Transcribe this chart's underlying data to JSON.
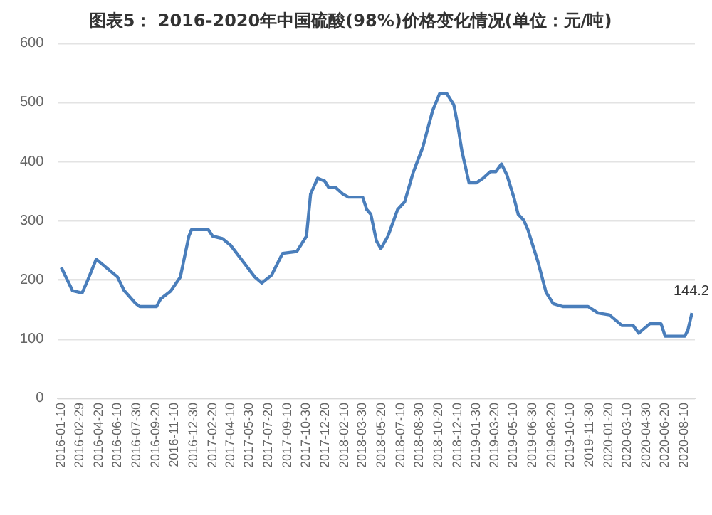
{
  "chart_data": {
    "type": "line",
    "title": "图表5： 2016-2020年中国硫酸(98%)价格变化情况(单位：元/吨)",
    "x": [
      "2016-01-10",
      "2016-02-09",
      "2016-03-06",
      "2016-03-18",
      "2016-04-13",
      "2016-06-09",
      "2016-06-27",
      "2016-07-28",
      "2016-08-08",
      "2016-09-22",
      "2016-10-03",
      "2016-10-30",
      "2016-11-25",
      "2016-12-18",
      "2016-12-25",
      "2017-02-08",
      "2017-02-20",
      "2017-03-18",
      "2017-04-10",
      "2017-06-13",
      "2017-07-02",
      "2017-07-28",
      "2017-08-27",
      "2017-10-04",
      "2017-10-30",
      "2017-11-10",
      "2017-11-29",
      "2017-12-18",
      "2017-12-29",
      "2018-01-17",
      "2018-02-05",
      "2018-02-20",
      "2018-03-30",
      "2018-04-10",
      "2018-04-21",
      "2018-05-06",
      "2018-05-18",
      "2018-06-06",
      "2018-07-02",
      "2018-07-21",
      "2018-08-12",
      "2018-09-08",
      "2018-09-19",
      "2018-10-04",
      "2018-10-23",
      "2018-11-11",
      "2018-11-30",
      "2018-12-11",
      "2018-12-22",
      "2019-01-10",
      "2019-01-29",
      "2019-02-17",
      "2019-03-08",
      "2019-03-23",
      "2019-04-07",
      "2019-04-22",
      "2019-05-11",
      "2019-05-22",
      "2019-06-06",
      "2019-06-17",
      "2019-07-14",
      "2019-08-05",
      "2019-08-24",
      "2019-09-19",
      "2019-11-26",
      "2019-12-23",
      "2020-01-22",
      "2020-02-25",
      "2020-03-26",
      "2020-04-10",
      "2020-05-10",
      "2020-06-09",
      "2020-06-20",
      "2020-08-12",
      "2020-08-20",
      "2020-08-31"
    ],
    "series": [
      {
        "color": "#4a7ebb",
        "values": [
          221,
          182,
          178,
          195,
          235,
          205,
          182,
          160,
          155,
          155,
          168,
          181,
          205,
          274,
          285,
          285,
          274,
          270,
          258,
          205,
          195,
          208,
          245,
          248,
          274,
          345,
          372,
          367,
          356,
          356,
          345,
          340,
          340,
          319,
          311,
          266,
          253,
          274,
          319,
          332,
          380,
          425,
          451,
          486,
          515,
          515,
          496,
          460,
          417,
          364,
          364,
          372,
          383,
          383,
          396,
          377,
          338,
          311,
          301,
          285,
          231,
          179,
          160,
          155,
          155,
          144,
          141,
          123,
          123,
          110,
          126,
          126,
          105,
          105,
          115,
          144.2
        ],
        "value_labels": [
          null,
          null,
          null,
          null,
          null,
          null,
          null,
          null,
          null,
          null,
          null,
          null,
          null,
          null,
          null,
          null,
          null,
          null,
          null,
          null,
          null,
          null,
          null,
          null,
          null,
          null,
          null,
          null,
          null,
          null,
          null,
          null,
          null,
          null,
          null,
          null,
          null,
          null,
          null,
          null,
          null,
          null,
          null,
          null,
          null,
          null,
          null,
          null,
          null,
          null,
          null,
          null,
          null,
          null,
          null,
          null,
          null,
          null,
          null,
          null,
          null,
          null,
          null,
          null,
          null,
          null,
          null,
          null,
          null,
          null,
          null,
          null,
          null,
          null,
          null,
          "144.2"
        ]
      }
    ],
    "xlim": [
      "2016-01-01",
      "2020-09-08"
    ],
    "xticks": [
      "2016-01-10",
      "2016-02-29",
      "2016-04-20",
      "2016-06-10",
      "2016-07-30",
      "2016-09-20",
      "2016-11-10",
      "2016-12-30",
      "2017-02-20",
      "2017-04-10",
      "2017-05-30",
      "2017-07-20",
      "2017-09-10",
      "2017-10-30",
      "2017-12-20",
      "2018-02-10",
      "2018-03-30",
      "2018-05-20",
      "2018-07-10",
      "2018-08-30",
      "2018-10-20",
      "2018-12-10",
      "2019-01-30",
      "2019-03-20",
      "2019-05-10",
      "2019-06-30",
      "2019-08-20",
      "2019-10-10",
      "2019-11-30",
      "2020-01-20",
      "2020-03-10",
      "2020-04-30",
      "2020-06-20",
      "2020-08-10"
    ],
    "ylim": [
      0,
      600
    ],
    "yticks": [
      0,
      100,
      200,
      300,
      400,
      500,
      600
    ],
    "grid": "y",
    "legend": false
  }
}
